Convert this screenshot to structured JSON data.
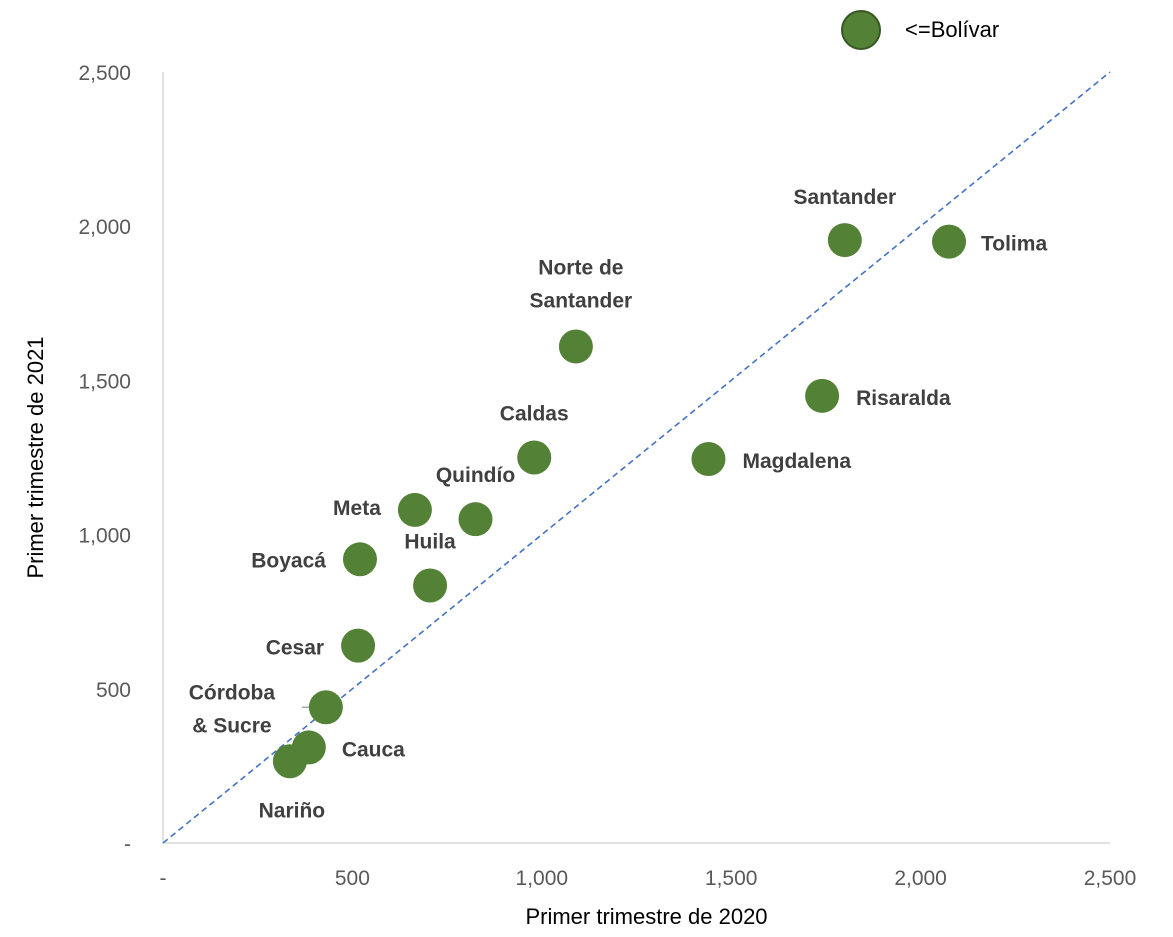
{
  "chart_data": {
    "type": "scatter",
    "title": "",
    "xlabel": "Primer trimestre de 2020",
    "ylabel": "Primer trimestre de 2021",
    "xlim": [
      0,
      2500
    ],
    "ylim": [
      0,
      2500
    ],
    "x_ticks": [
      0,
      500,
      1000,
      1500,
      2000,
      2500
    ],
    "x_tick_labels": [
      "-",
      "500",
      "1,000",
      "1,500",
      "2,000",
      "2,500"
    ],
    "y_ticks": [
      0,
      500,
      1000,
      1500,
      2000,
      2500
    ],
    "y_tick_labels": [
      "-",
      "500",
      "1,000",
      "1,500",
      "2,000",
      "2,500"
    ],
    "grid": false,
    "reference_line": "y = x",
    "legend": {
      "placement": "top-right",
      "series_name": "<=Bolívar"
    },
    "marker_color": "#538135",
    "reference_line_color": "#4472C4",
    "series": [
      {
        "name": "<=Bolívar",
        "points": [
          {
            "label": "Santander",
            "x": 1800,
            "y": 1955
          },
          {
            "label": "Tolima",
            "x": 2075,
            "y": 1950
          },
          {
            "label": "Norte de\nSantander",
            "x": 1090,
            "y": 1610
          },
          {
            "label": "Risaralda",
            "x": 1740,
            "y": 1450
          },
          {
            "label": "Caldas",
            "x": 980,
            "y": 1250
          },
          {
            "label": "Magdalena",
            "x": 1440,
            "y": 1245
          },
          {
            "label": "Quindío",
            "x": 825,
            "y": 1050
          },
          {
            "label": "Meta",
            "x": 665,
            "y": 1080
          },
          {
            "label": "Boyacá",
            "x": 520,
            "y": 920
          },
          {
            "label": "Huila",
            "x": 705,
            "y": 835
          },
          {
            "label": "Cesar",
            "x": 515,
            "y": 640
          },
          {
            "label": "Córdoba\n& Sucre",
            "x": 430,
            "y": 440
          },
          {
            "label": "Cauca",
            "x": 385,
            "y": 310
          },
          {
            "label": "Nariño",
            "x": 335,
            "y": 265
          }
        ]
      }
    ]
  }
}
